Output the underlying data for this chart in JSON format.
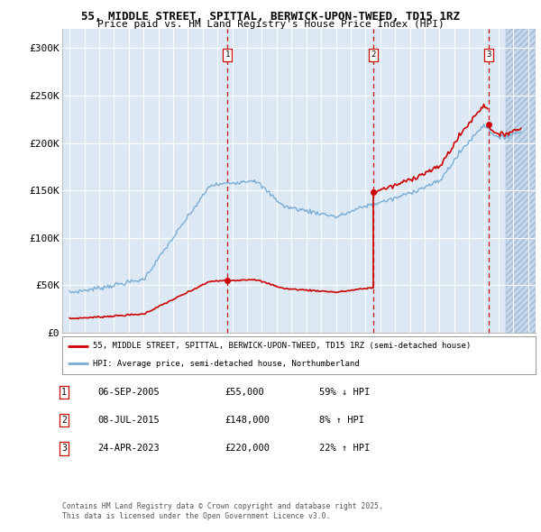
{
  "title": "55, MIDDLE STREET, SPITTAL, BERWICK-UPON-TWEED, TD15 1RZ",
  "subtitle": "Price paid vs. HM Land Registry's House Price Index (HPI)",
  "sale_label": "55, MIDDLE STREET, SPITTAL, BERWICK-UPON-TWEED, TD15 1RZ (semi-detached house)",
  "hpi_label": "HPI: Average price, semi-detached house, Northumberland",
  "sale_color": "#cc0000",
  "hpi_color": "#7aadd4",
  "transactions": [
    {
      "num": 1,
      "date": "2005-09-06",
      "price": 55000,
      "pct": "59%",
      "dir": "↓"
    },
    {
      "num": 2,
      "date": "2015-07-08",
      "price": 148000,
      "pct": "8%",
      "dir": "↑"
    },
    {
      "num": 3,
      "date": "2023-04-24",
      "price": 220000,
      "pct": "22%",
      "dir": "↑"
    }
  ],
  "transaction_label_dates": [
    "06-SEP-2005",
    "08-JUL-2015",
    "24-APR-2023"
  ],
  "transaction_prices_str": [
    "£55,000",
    "£148,000",
    "£220,000"
  ],
  "transaction_pct_str": [
    "59% ↓ HPI",
    "8% ↑ HPI",
    "22% ↑ HPI"
  ],
  "footer1": "Contains HM Land Registry data © Crown copyright and database right 2025.",
  "footer2": "This data is licensed under the Open Government Licence v3.0.",
  "ylim": [
    0,
    320000
  ],
  "yticks": [
    0,
    50000,
    100000,
    150000,
    200000,
    250000,
    300000
  ],
  "ytick_labels": [
    "£0",
    "£50K",
    "£100K",
    "£150K",
    "£200K",
    "£250K",
    "£300K"
  ],
  "background_plot": "#dce9f5",
  "background_hatch_color": "#c5d8ec",
  "grid_color": "#ffffff",
  "dashed_line_color": "#cc0000",
  "sale_dates_decimal": [
    2005.676,
    2015.518,
    2023.314
  ],
  "sale_prices": [
    55000,
    148000,
    220000
  ],
  "hpi_start_year": 1995.0,
  "hpi_end_year": 2025.5,
  "xmin": 1994.5,
  "xmax": 2026.5,
  "hatch_start": 2024.5
}
